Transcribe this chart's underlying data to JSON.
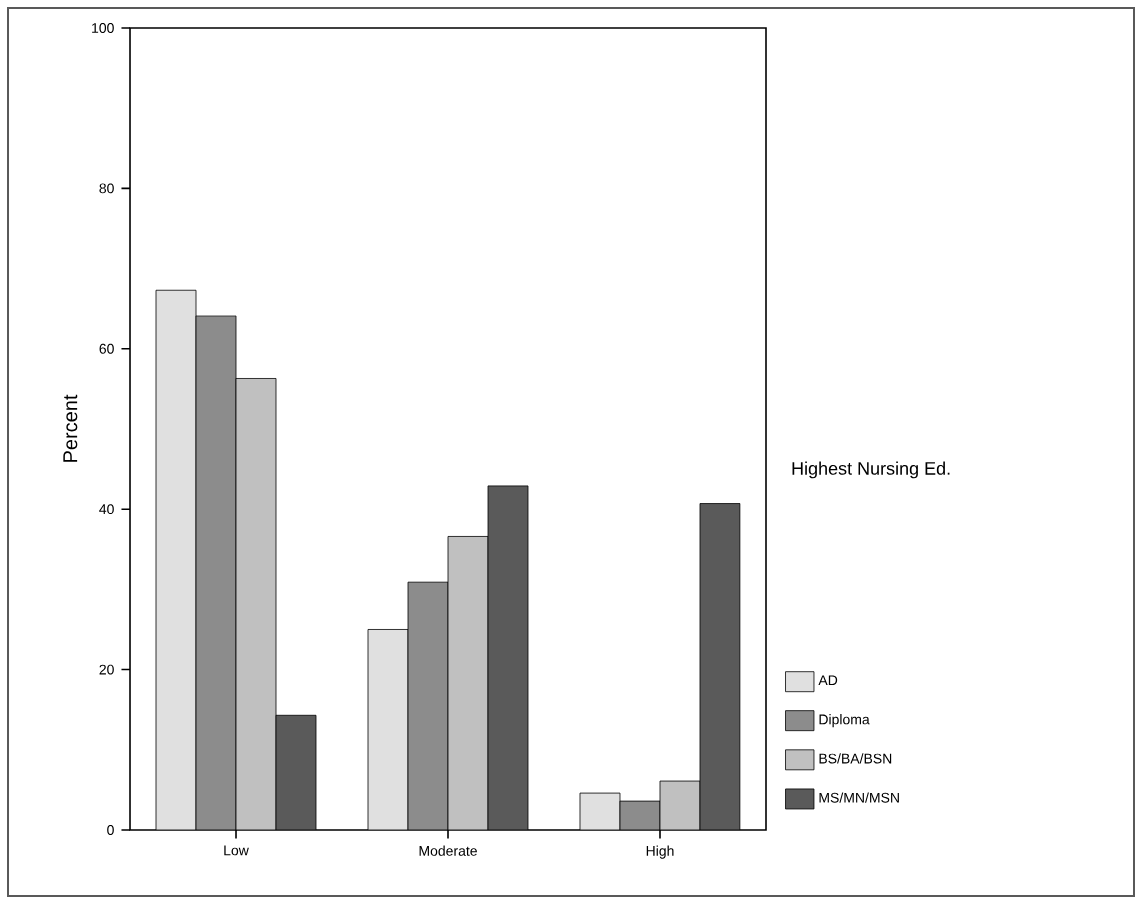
{
  "chart_data": {
    "type": "bar",
    "ylabel": "Percent",
    "legend_title": "Highest Nursing Ed.",
    "legend": "right",
    "categories": [
      "Low",
      "Moderate",
      "High"
    ],
    "ylim": [
      0,
      100
    ],
    "yticks": [
      0,
      20,
      40,
      60,
      80,
      100
    ],
    "series": [
      {
        "name": "AD",
        "color": "#e0e0e0",
        "values": [
          67.3,
          25.0,
          4.6
        ]
      },
      {
        "name": "Diploma",
        "color": "#8c8c8c",
        "values": [
          64.1,
          30.9,
          3.6
        ]
      },
      {
        "name": "BS/BA/BSN",
        "color": "#c0c0c0",
        "values": [
          56.3,
          36.6,
          6.1
        ]
      },
      {
        "name": "MS/MN/MSN",
        "color": "#5a5a5a",
        "values": [
          14.3,
          42.9,
          40.7
        ]
      }
    ]
  }
}
